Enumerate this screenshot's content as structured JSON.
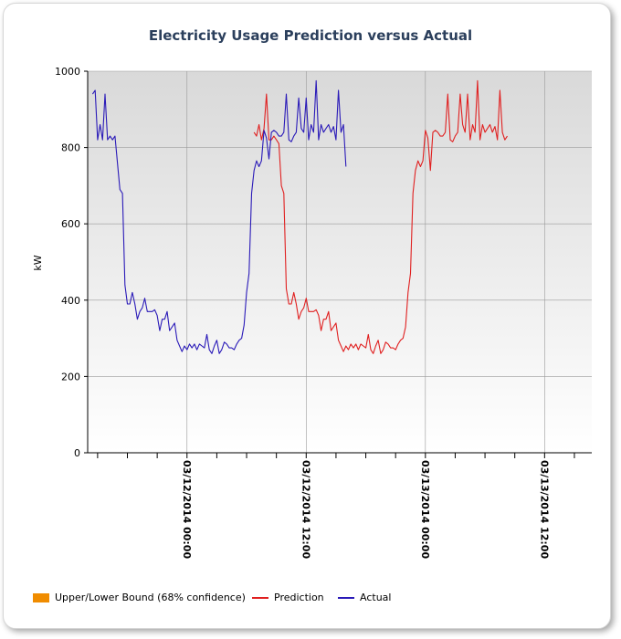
{
  "chart_data": {
    "type": "line",
    "title": "Electricity Usage Prediction versus Actual",
    "xlabel": "",
    "ylabel": "kW",
    "ylim": [
      0,
      1000
    ],
    "y_ticks": [
      0,
      200,
      400,
      600,
      800,
      1000
    ],
    "x_ticks": [
      "03/12/2014 00:00",
      "03/12/2014 12:00",
      "03/13/2014 00:00",
      "03/13/2014 12:00"
    ],
    "x_range_hours": [
      -10,
      40.75
    ],
    "grid": true,
    "legend": "bottom",
    "legend_entries": [
      {
        "name": "Upper/Lower Bound (68% confidence)",
        "color": "#f08c00",
        "kind": "block"
      },
      {
        "name": "Prediction",
        "color": "#e02020",
        "kind": "line"
      },
      {
        "name": "Actual",
        "color": "#2a1ab8",
        "kind": "line"
      }
    ],
    "series": [
      {
        "name": "Actual",
        "color": "#2a1ab8",
        "x_start_hours": -9.5,
        "step_hours": 0.25,
        "values": [
          940,
          950,
          820,
          860,
          820,
          940,
          820,
          830,
          820,
          830,
          760,
          690,
          680,
          440,
          390,
          390,
          420,
          390,
          350,
          370,
          380,
          405,
          370,
          370,
          370,
          375,
          360,
          320,
          350,
          350,
          370,
          320,
          330,
          340,
          295,
          280,
          265,
          280,
          270,
          285,
          275,
          285,
          270,
          285,
          280,
          275,
          310,
          270,
          260,
          280,
          295,
          260,
          270,
          290,
          285,
          275,
          275,
          270,
          285,
          295,
          300,
          335,
          420,
          470,
          680,
          740,
          765,
          750,
          765,
          845,
          825,
          770,
          840,
          845,
          840,
          830,
          830,
          840,
          940,
          820,
          815,
          830,
          840,
          930,
          850,
          840,
          930,
          820,
          860,
          840,
          975,
          820,
          860,
          840,
          850,
          860,
          840,
          855,
          820,
          950,
          840,
          860,
          750
        ]
      },
      {
        "name": "Prediction",
        "color": "#e02020",
        "x_start_hours": 6.75,
        "step_hours": 0.25,
        "values": [
          840,
          830,
          860,
          820,
          850,
          940,
          820,
          820,
          830,
          820,
          810,
          700,
          680,
          430,
          390,
          390,
          420,
          390,
          350,
          370,
          380,
          405,
          370,
          370,
          370,
          375,
          360,
          320,
          350,
          350,
          370,
          320,
          330,
          340,
          295,
          280,
          265,
          280,
          270,
          285,
          275,
          285,
          270,
          285,
          280,
          275,
          310,
          270,
          260,
          280,
          295,
          260,
          270,
          290,
          285,
          275,
          275,
          270,
          285,
          295,
          300,
          330,
          420,
          470,
          680,
          740,
          765,
          750,
          765,
          845,
          825,
          740,
          840,
          845,
          840,
          830,
          830,
          840,
          940,
          820,
          815,
          830,
          840,
          940,
          860,
          840,
          940,
          820,
          860,
          840,
          975,
          820,
          860,
          840,
          850,
          860,
          840,
          855,
          820,
          950,
          840,
          820,
          830
        ]
      }
    ]
  }
}
